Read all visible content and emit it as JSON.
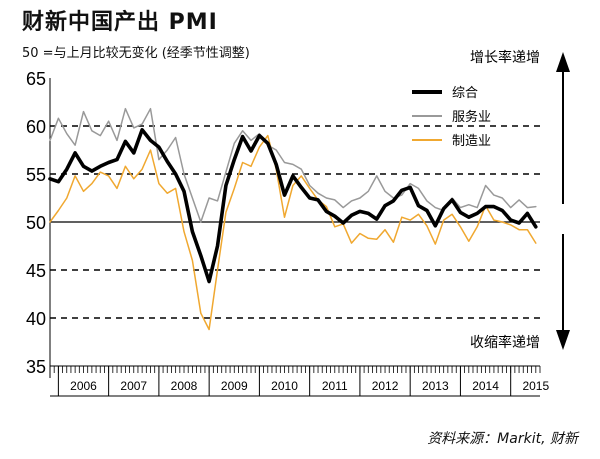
{
  "title": "财新中国产出 PMI",
  "subtitle": "50 =与上月比较无变化 (经季节性调整)",
  "source": "资料来源：Markit, 财新",
  "colors": {
    "composite": "#000000",
    "services": "#999999",
    "manufacturing": "#f0a830"
  },
  "chart_data": {
    "type": "line",
    "title": "财新中国产出 PMI",
    "ylim": [
      35,
      65
    ],
    "yticks": [
      35,
      40,
      45,
      50,
      55,
      60,
      65
    ],
    "xlim": [
      "2005-11",
      "2015-08"
    ],
    "xtick_labels": [
      "2006",
      "2007",
      "2008",
      "2009",
      "2010",
      "2011",
      "2012",
      "2013",
      "2014",
      "2015"
    ],
    "grid": "dashed horizontal",
    "reference_line": 50,
    "legend_position": "top-right",
    "annotations": {
      "up": "增长率递增",
      "down": "收缩率递增"
    },
    "x": [
      "2005-11",
      "2006-01",
      "2006-03",
      "2006-05",
      "2006-07",
      "2006-09",
      "2006-11",
      "2007-01",
      "2007-03",
      "2007-05",
      "2007-07",
      "2007-09",
      "2007-11",
      "2008-01",
      "2008-03",
      "2008-05",
      "2008-07",
      "2008-09",
      "2008-11",
      "2009-01",
      "2009-03",
      "2009-05",
      "2009-07",
      "2009-09",
      "2009-11",
      "2010-01",
      "2010-03",
      "2010-05",
      "2010-07",
      "2010-09",
      "2010-11",
      "2011-01",
      "2011-03",
      "2011-05",
      "2011-07",
      "2011-09",
      "2011-11",
      "2012-01",
      "2012-03",
      "2012-05",
      "2012-07",
      "2012-09",
      "2012-11",
      "2013-01",
      "2013-03",
      "2013-05",
      "2013-07",
      "2013-09",
      "2013-11",
      "2014-01",
      "2014-03",
      "2014-05",
      "2014-07",
      "2014-09",
      "2014-11",
      "2015-01",
      "2015-03",
      "2015-05",
      "2015-07"
    ],
    "series": [
      {
        "name": "综合",
        "key": "composite",
        "values": [
          54.5,
          54.2,
          55.5,
          57.2,
          55.8,
          55.3,
          55.8,
          56.2,
          56.5,
          58.4,
          57.2,
          59.6,
          58.5,
          57.8,
          56.3,
          55.0,
          53.2,
          49.0,
          46.5,
          43.8,
          47.5,
          53.8,
          56.5,
          58.9,
          57.4,
          59.0,
          58.2,
          56.0,
          52.8,
          54.8,
          53.6,
          52.5,
          52.3,
          51.1,
          50.6,
          49.9,
          50.7,
          51.1,
          50.9,
          50.3,
          51.7,
          52.2,
          53.3,
          53.6,
          51.7,
          51.2,
          49.6,
          51.4,
          52.3,
          51.0,
          50.5,
          50.9,
          51.6,
          51.6,
          51.2,
          50.2,
          49.9,
          50.9,
          49.5
        ]
      },
      {
        "name": "服务业",
        "key": "services",
        "values": [
          58.5,
          60.8,
          59.2,
          58.0,
          61.5,
          59.5,
          59.0,
          60.5,
          58.5,
          61.8,
          59.8,
          60.2,
          61.8,
          56.5,
          57.5,
          58.8,
          55.0,
          52.5,
          50.0,
          52.5,
          52.2,
          55.2,
          58.2,
          59.5,
          58.5,
          59.2,
          58.0,
          57.5,
          56.2,
          56.0,
          55.5,
          53.8,
          53.0,
          52.5,
          52.3,
          51.5,
          52.2,
          52.5,
          53.2,
          54.8,
          53.2,
          52.5,
          52.8,
          54.0,
          53.5,
          52.2,
          51.5,
          51.2,
          52.5,
          51.5,
          51.8,
          51.5,
          53.8,
          52.8,
          52.5,
          51.5,
          52.3,
          51.5,
          51.6
        ]
      },
      {
        "name": "制造业",
        "key": "manufacturing",
        "values": [
          50.0,
          51.2,
          52.5,
          54.8,
          53.2,
          54.0,
          55.2,
          54.8,
          53.5,
          55.8,
          54.5,
          55.5,
          57.5,
          54.0,
          53.0,
          53.5,
          49.0,
          46.0,
          40.5,
          38.8,
          45.0,
          51.0,
          53.5,
          56.2,
          55.8,
          57.8,
          59.0,
          55.5,
          50.5,
          53.8,
          54.8,
          53.5,
          52.3,
          51.6,
          49.5,
          49.8,
          47.8,
          48.8,
          48.3,
          48.2,
          49.2,
          47.9,
          50.5,
          50.2,
          50.8,
          49.6,
          47.7,
          50.2,
          50.8,
          49.5,
          48.0,
          49.5,
          51.7,
          50.2,
          50.0,
          49.7,
          49.2,
          49.2,
          47.8
        ]
      }
    ]
  }
}
